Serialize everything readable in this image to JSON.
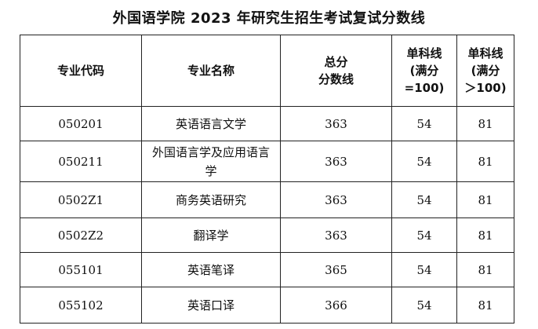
{
  "title": "外国语学院 2023 年研究生招生考试复试分数线",
  "headers": {
    "code": "专业代码",
    "name": "专业名称",
    "total_line1": "总分",
    "total_line2": "分数线",
    "single100_line1": "单科线",
    "single100_line2": "(满分",
    "single100_line3": "=100)",
    "single_gt100_line1": "单科线",
    "single_gt100_line2": "(满分",
    "single_gt100_line3": "＞100)"
  },
  "rows": [
    {
      "code": "050201",
      "name": "英语语言文学",
      "total": "363",
      "single100": "54",
      "single_gt100": "81"
    },
    {
      "code": "050211",
      "name": "外国语言学及应用语言学",
      "total": "363",
      "single100": "54",
      "single_gt100": "81"
    },
    {
      "code": "0502Z1",
      "name": "商务英语研究",
      "total": "363",
      "single100": "54",
      "single_gt100": "81"
    },
    {
      "code": "0502Z2",
      "name": "翻译学",
      "total": "363",
      "single100": "54",
      "single_gt100": "81"
    },
    {
      "code": "055101",
      "name": "英语笔译",
      "total": "365",
      "single100": "54",
      "single_gt100": "81"
    },
    {
      "code": "055102",
      "name": "英语口译",
      "total": "366",
      "single100": "54",
      "single_gt100": "81"
    }
  ]
}
